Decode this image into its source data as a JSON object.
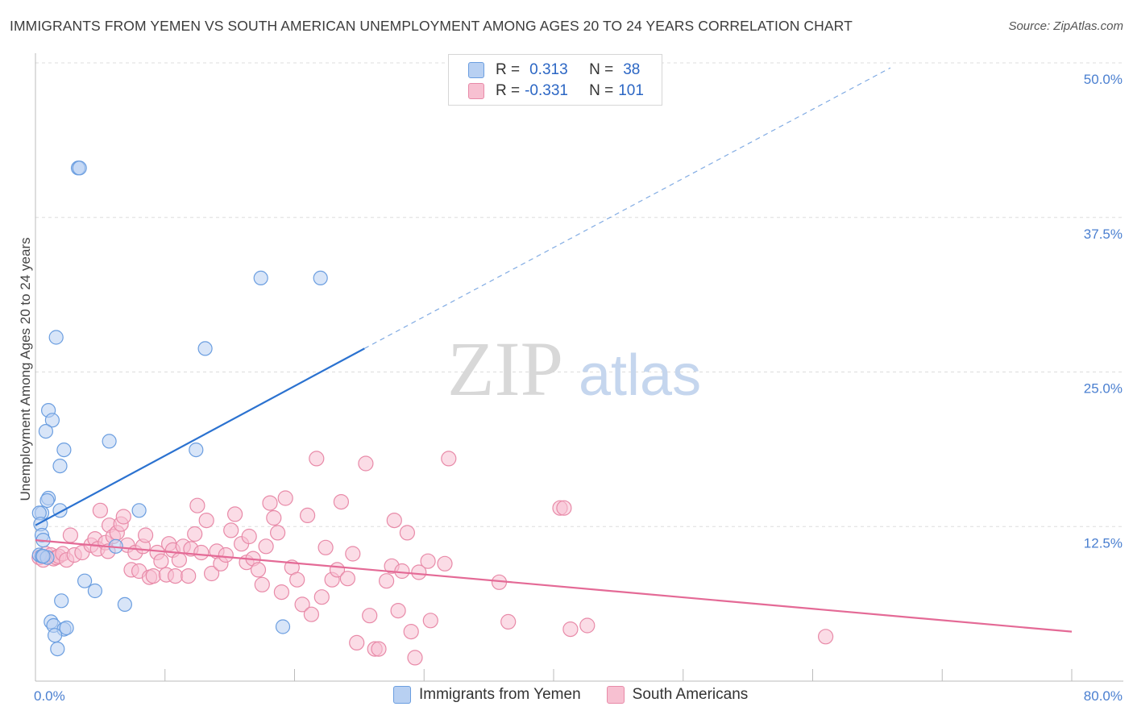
{
  "title": "IMMIGRANTS FROM YEMEN VS SOUTH AMERICAN UNEMPLOYMENT AMONG AGES 20 TO 24 YEARS CORRELATION CHART",
  "source": "Source: ZipAtlas.com",
  "watermark": {
    "zip": "ZIP",
    "atlas": "atlas"
  },
  "legend": {
    "r_label": "R =",
    "n_label": "N =",
    "series1": {
      "r": "0.313",
      "n": "38"
    },
    "series2": {
      "r": "-0.331",
      "n": "101"
    }
  },
  "bottom_legend": {
    "series1": "Immigrants from Yemen",
    "series2": "South Americans"
  },
  "colors": {
    "blue_fill": "#b8d0f2",
    "blue_stroke": "#6b9ee0",
    "blue_line": "#2b72d0",
    "pink_fill": "#f7c0d1",
    "pink_stroke": "#e88aa8",
    "pink_line": "#e46a96",
    "tick_text": "#4a7fd0",
    "grid": "#dddddd"
  },
  "chart_data": {
    "type": "scatter",
    "title": "IMMIGRANTS FROM YEMEN VS SOUTH AMERICAN UNEMPLOYMENT AMONG AGES 20 TO 24 YEARS CORRELATION CHART",
    "xlabel": "",
    "ylabel": "Unemployment Among Ages 20 to 24 years",
    "xlim": [
      0,
      80
    ],
    "ylim": [
      0,
      52
    ],
    "x_tick_labels": [
      {
        "value": 0,
        "label": "0.0%"
      },
      {
        "value": 80,
        "label": "80.0%"
      }
    ],
    "y_tick_labels": [
      {
        "value": 12.5,
        "label": "12.5%"
      },
      {
        "value": 25,
        "label": "25.0%"
      },
      {
        "value": 37.5,
        "label": "37.5%"
      },
      {
        "value": 50,
        "label": "50.0%"
      }
    ],
    "series": [
      {
        "name": "Immigrants from Yemen",
        "color": "blue",
        "points": [
          [
            3.3,
            41.5
          ],
          [
            3.4,
            41.5
          ],
          [
            17.4,
            32.6
          ],
          [
            22.0,
            32.6
          ],
          [
            1.6,
            27.8
          ],
          [
            13.1,
            26.9
          ],
          [
            1.0,
            21.9
          ],
          [
            1.3,
            21.1
          ],
          [
            0.8,
            20.2
          ],
          [
            5.7,
            19.4
          ],
          [
            12.4,
            18.7
          ],
          [
            2.2,
            18.7
          ],
          [
            1.9,
            17.4
          ],
          [
            1.0,
            14.8
          ],
          [
            0.9,
            14.6
          ],
          [
            8.0,
            13.8
          ],
          [
            1.9,
            13.8
          ],
          [
            0.5,
            13.6
          ],
          [
            0.3,
            13.6
          ],
          [
            0.4,
            12.7
          ],
          [
            0.5,
            11.8
          ],
          [
            0.6,
            11.4
          ],
          [
            6.2,
            10.9
          ],
          [
            0.3,
            10.2
          ],
          [
            0.5,
            10.1
          ],
          [
            0.9,
            10.0
          ],
          [
            0.6,
            10.1
          ],
          [
            3.8,
            8.1
          ],
          [
            4.6,
            7.3
          ],
          [
            6.9,
            6.2
          ],
          [
            2.0,
            6.5
          ],
          [
            1.2,
            4.8
          ],
          [
            1.4,
            4.5
          ],
          [
            2.2,
            4.2
          ],
          [
            2.4,
            4.3
          ],
          [
            19.1,
            4.4
          ],
          [
            1.5,
            3.7
          ],
          [
            1.7,
            2.6
          ]
        ]
      },
      {
        "name": "South Americans",
        "color": "pink",
        "points": [
          [
            0.3,
            10.0
          ],
          [
            0.6,
            9.8
          ],
          [
            0.8,
            10.3
          ],
          [
            1.2,
            10.2
          ],
          [
            1.4,
            9.9
          ],
          [
            1.6,
            10.0
          ],
          [
            1.8,
            10.1
          ],
          [
            2.1,
            10.3
          ],
          [
            2.4,
            9.8
          ],
          [
            2.7,
            11.8
          ],
          [
            3.0,
            10.2
          ],
          [
            3.6,
            10.4
          ],
          [
            4.3,
            11.0
          ],
          [
            4.6,
            11.5
          ],
          [
            4.8,
            10.7
          ],
          [
            5.0,
            13.8
          ],
          [
            5.4,
            11.2
          ],
          [
            5.6,
            10.5
          ],
          [
            5.7,
            12.6
          ],
          [
            6.0,
            11.7
          ],
          [
            6.3,
            12.0
          ],
          [
            6.6,
            12.7
          ],
          [
            6.8,
            13.3
          ],
          [
            7.1,
            11.0
          ],
          [
            7.4,
            9.0
          ],
          [
            7.7,
            10.4
          ],
          [
            8.0,
            8.9
          ],
          [
            8.3,
            10.9
          ],
          [
            8.5,
            11.8
          ],
          [
            8.8,
            8.4
          ],
          [
            9.1,
            8.5
          ],
          [
            9.4,
            10.4
          ],
          [
            9.7,
            9.7
          ],
          [
            10.1,
            8.6
          ],
          [
            10.3,
            11.1
          ],
          [
            10.6,
            10.6
          ],
          [
            10.8,
            8.5
          ],
          [
            11.1,
            9.8
          ],
          [
            11.4,
            10.9
          ],
          [
            11.8,
            8.5
          ],
          [
            12.0,
            10.7
          ],
          [
            12.3,
            11.9
          ],
          [
            12.5,
            14.2
          ],
          [
            12.8,
            10.4
          ],
          [
            13.2,
            13.0
          ],
          [
            13.6,
            8.7
          ],
          [
            14.0,
            10.5
          ],
          [
            14.3,
            9.5
          ],
          [
            14.7,
            10.2
          ],
          [
            15.1,
            12.2
          ],
          [
            15.4,
            13.5
          ],
          [
            15.9,
            11.1
          ],
          [
            16.3,
            9.6
          ],
          [
            16.5,
            11.7
          ],
          [
            16.8,
            9.9
          ],
          [
            17.2,
            9.0
          ],
          [
            17.5,
            7.8
          ],
          [
            17.8,
            10.9
          ],
          [
            18.1,
            14.4
          ],
          [
            18.4,
            13.2
          ],
          [
            18.7,
            12.0
          ],
          [
            19.0,
            7.2
          ],
          [
            19.3,
            14.8
          ],
          [
            19.8,
            9.2
          ],
          [
            20.2,
            8.2
          ],
          [
            20.6,
            6.2
          ],
          [
            21.0,
            13.4
          ],
          [
            21.3,
            5.4
          ],
          [
            21.7,
            18.0
          ],
          [
            22.1,
            6.8
          ],
          [
            22.4,
            10.8
          ],
          [
            22.9,
            8.2
          ],
          [
            23.3,
            9.0
          ],
          [
            23.6,
            14.5
          ],
          [
            24.1,
            8.3
          ],
          [
            24.5,
            10.3
          ],
          [
            24.8,
            3.1
          ],
          [
            25.5,
            17.6
          ],
          [
            25.8,
            5.3
          ],
          [
            26.2,
            2.6
          ],
          [
            26.5,
            2.6
          ],
          [
            27.1,
            8.1
          ],
          [
            27.5,
            9.3
          ],
          [
            27.7,
            13.0
          ],
          [
            28.0,
            5.7
          ],
          [
            28.3,
            8.9
          ],
          [
            28.7,
            12.0
          ],
          [
            29.0,
            4.0
          ],
          [
            29.6,
            8.8
          ],
          [
            30.3,
            9.7
          ],
          [
            30.5,
            4.9
          ],
          [
            31.6,
            9.5
          ],
          [
            31.9,
            18.0
          ],
          [
            29.3,
            1.9
          ],
          [
            35.8,
            8.0
          ],
          [
            36.5,
            4.8
          ],
          [
            40.5,
            14.0
          ],
          [
            40.8,
            14.0
          ],
          [
            41.3,
            4.2
          ],
          [
            42.6,
            4.5
          ],
          [
            61.0,
            3.6
          ]
        ]
      }
    ],
    "trendlines": [
      {
        "series": "Immigrants from Yemen",
        "x": [
          0,
          25.4
        ],
        "y": [
          12.6,
          26.9
        ],
        "dashed_extension_to": [
          66.0,
          49.6
        ]
      },
      {
        "series": "South Americans",
        "x": [
          0,
          80
        ],
        "y": [
          11.4,
          4.0
        ]
      }
    ]
  }
}
